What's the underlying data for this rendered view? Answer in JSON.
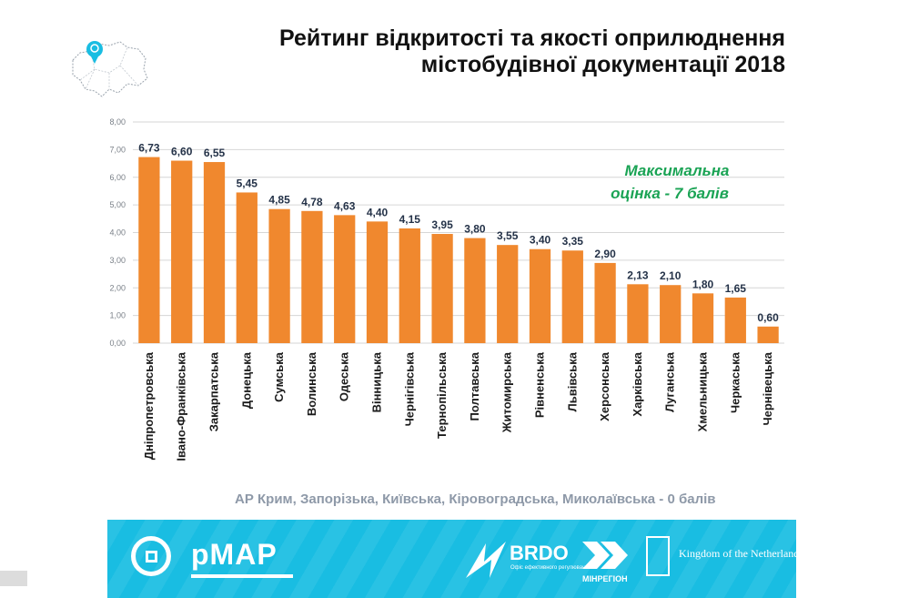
{
  "title": {
    "line1": "Рейтинг відкритості та якості оприлюднення",
    "line2": "містобудівної документації 2018"
  },
  "annotation": {
    "line1": "Максимальна",
    "line2": "оцінка - 7 балів",
    "color": "#1aa354"
  },
  "footnote": "АР Крим, Запорізька, Київська, Кіровоградська, Миколаївська - 0 балів",
  "colors": {
    "bar": "#f0882e",
    "axis_text": "#7a8088",
    "grid": "#d6d6d6",
    "banner": "#19bde2"
  },
  "chart_data": {
    "type": "bar",
    "categories": [
      "Дніпропетровська",
      "Івано-Франківська",
      "Закарпатська",
      "Донецька",
      "Сумська",
      "Волинська",
      "Одеська",
      "Вінницька",
      "Чернігівська",
      "Тернопільська",
      "Полтавська",
      "Житомирська",
      "Рівненська",
      "Львівська",
      "Херсонська",
      "Харківська",
      "Луганська",
      "Хмельницька",
      "Черкаська",
      "Чернівецька"
    ],
    "values": [
      6.73,
      6.6,
      6.55,
      5.45,
      4.85,
      4.78,
      4.63,
      4.4,
      4.15,
      3.95,
      3.8,
      3.55,
      3.4,
      3.35,
      2.9,
      2.13,
      2.1,
      1.8,
      1.65,
      0.6
    ],
    "value_labels": [
      "6,73",
      "6,60",
      "6,55",
      "5,45",
      "4,85",
      "4,78",
      "4,63",
      "4,40",
      "4,15",
      "3,95",
      "3,80",
      "3,55",
      "3,40",
      "3,35",
      "2,90",
      "2,13",
      "2,10",
      "1,80",
      "1,65",
      "0,60"
    ],
    "ylim": [
      0,
      8
    ],
    "yticks": [
      "0,00",
      "1,00",
      "2,00",
      "3,00",
      "4,00",
      "5,00",
      "6,00",
      "7,00",
      "8,00"
    ],
    "grid": true
  },
  "banner": {
    "pmap_label": "pMAP",
    "brdo_label": "BRDO",
    "brdo_sub": "Офіс ефективного регулювання",
    "minregion_label": "МІНРЕГІОН",
    "netherlands_label": "Kingdom of the Netherlands",
    "logo_icons": [
      "pmap-logo-icon",
      "brdo-logo-icon",
      "minregion-logo-icon",
      "netherlands-crest-icon"
    ]
  }
}
